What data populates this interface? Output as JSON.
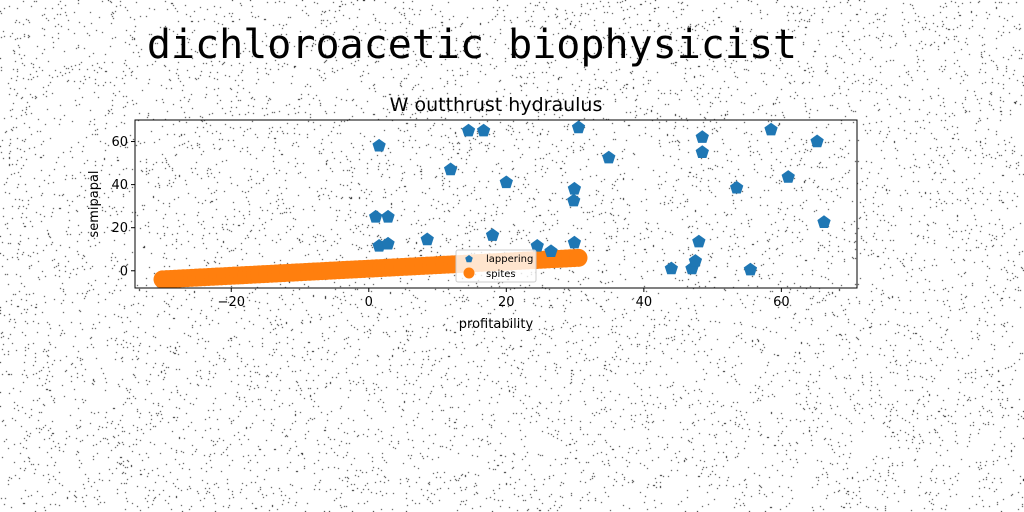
{
  "figure": {
    "suptitle": "dichloroacetic biophysicist"
  },
  "colors": {
    "series_blue": "#1f77b4",
    "series_orange": "#ff7f0e"
  },
  "chart_data": {
    "type": "scatter",
    "title": "W outthrust hydraulus",
    "xlabel": "profitability",
    "ylabel": "semipapal",
    "xlim": [
      -34,
      71
    ],
    "ylim": [
      -8,
      70
    ],
    "xticks": [
      -20,
      0,
      20,
      40,
      60
    ],
    "yticks": [
      0,
      20,
      40,
      60
    ],
    "grid": false,
    "legend_position": "lower center",
    "series": [
      {
        "name": "lappering",
        "marker": "pentagon",
        "color": "#1f77b4",
        "points": [
          [
            1,
            25
          ],
          [
            1.5,
            58
          ],
          [
            1.5,
            11.5
          ],
          [
            2.8,
            12.5
          ],
          [
            2.8,
            25
          ],
          [
            8.5,
            14.5
          ],
          [
            11.9,
            47
          ],
          [
            14.5,
            65
          ],
          [
            16.7,
            65
          ],
          [
            18,
            16.5
          ],
          [
            20,
            41
          ],
          [
            24.5,
            11.5
          ],
          [
            26.5,
            9
          ],
          [
            29.8,
            32.5
          ],
          [
            29.9,
            38
          ],
          [
            29.9,
            13
          ],
          [
            30.5,
            66.5
          ],
          [
            34.9,
            52.5
          ],
          [
            44,
            1
          ],
          [
            47,
            1
          ],
          [
            47.5,
            4.5
          ],
          [
            48,
            13.5
          ],
          [
            48.5,
            62
          ],
          [
            48.5,
            55
          ],
          [
            53.5,
            38.5
          ],
          [
            55.5,
            0.5
          ],
          [
            58.5,
            65.5
          ],
          [
            61,
            43.5
          ],
          [
            65.2,
            60
          ],
          [
            66.2,
            22.5
          ]
        ]
      },
      {
        "name": "spites",
        "marker": "circle",
        "color": "#ff7f0e",
        "line_from": [
          -30,
          -4
        ],
        "line_to": [
          30.5,
          6
        ],
        "n_points": 100
      }
    ]
  }
}
